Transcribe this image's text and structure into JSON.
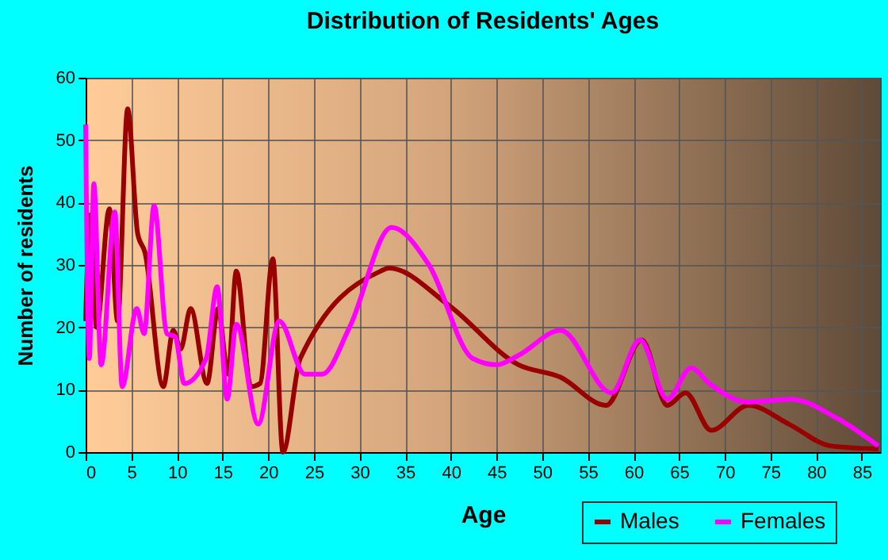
{
  "chart_data": {
    "type": "line",
    "title": "Distribution of Residents' Ages",
    "xlabel": "Age",
    "ylabel": "Number of residents",
    "xlim": [
      0,
      87
    ],
    "xticks": [
      0,
      5,
      10,
      15,
      20,
      25,
      30,
      35,
      40,
      45,
      50,
      55,
      60,
      65,
      70,
      75,
      80,
      85
    ],
    "ylim": [
      0,
      60
    ],
    "yticks": [
      0,
      10,
      20,
      30,
      40,
      50,
      60
    ],
    "grid": true,
    "legend": "bottom right",
    "marker": "none",
    "line_style": "solid",
    "series": [
      {
        "name": "Males",
        "color": "#990000",
        "x": [
          0,
          0.5,
          1.2,
          2.6,
          3.5,
          4.6,
          5.7,
          6.5,
          8.5,
          9.6,
          10.4,
          11.5,
          13.3,
          14.5,
          15.6,
          16.5,
          18.1,
          19.1,
          20.5,
          21.6,
          23.5,
          32.3,
          33.2,
          39.8,
          47.4,
          52,
          57,
          60.9,
          63.7,
          65.7,
          68.5,
          72.6,
          77,
          81.6,
          86.8
        ],
        "values": [
          21,
          38,
          20,
          39,
          21,
          55,
          35,
          32,
          10.5,
          19.5,
          16.5,
          23,
          11,
          23,
          12.5,
          29,
          10.5,
          11,
          31,
          0,
          15,
          29,
          29.5,
          23.5,
          14,
          12,
          7.5,
          18,
          7.5,
          9.5,
          3.5,
          7.5,
          4.5,
          1,
          0.5
        ]
      },
      {
        "name": "Females",
        "color": "#ff00ff",
        "x": [
          0,
          0.4,
          0.9,
          1.7,
          3.2,
          4.0,
          5.6,
          6.4,
          7.5,
          8.9,
          9.8,
          10.8,
          13.2,
          14.4,
          15.5,
          16.5,
          18.9,
          21.2,
          24,
          25.9,
          28.9,
          33.5,
          37.6,
          42.4,
          45,
          47.4,
          52,
          57.6,
          60.7,
          63.7,
          66.3,
          68.3,
          72.6,
          77.2,
          82.2,
          86.8
        ],
        "values": [
          52.5,
          15,
          43,
          14,
          38.5,
          10.5,
          23,
          19,
          39.5,
          19,
          18.5,
          11,
          15,
          26.5,
          8.5,
          20.5,
          4.5,
          21,
          12.5,
          12.5,
          20,
          36,
          30,
          15,
          14,
          15.5,
          19.5,
          9.5,
          18,
          8.5,
          13.5,
          11,
          8,
          8.5,
          5.5,
          1
        ]
      }
    ]
  }
}
